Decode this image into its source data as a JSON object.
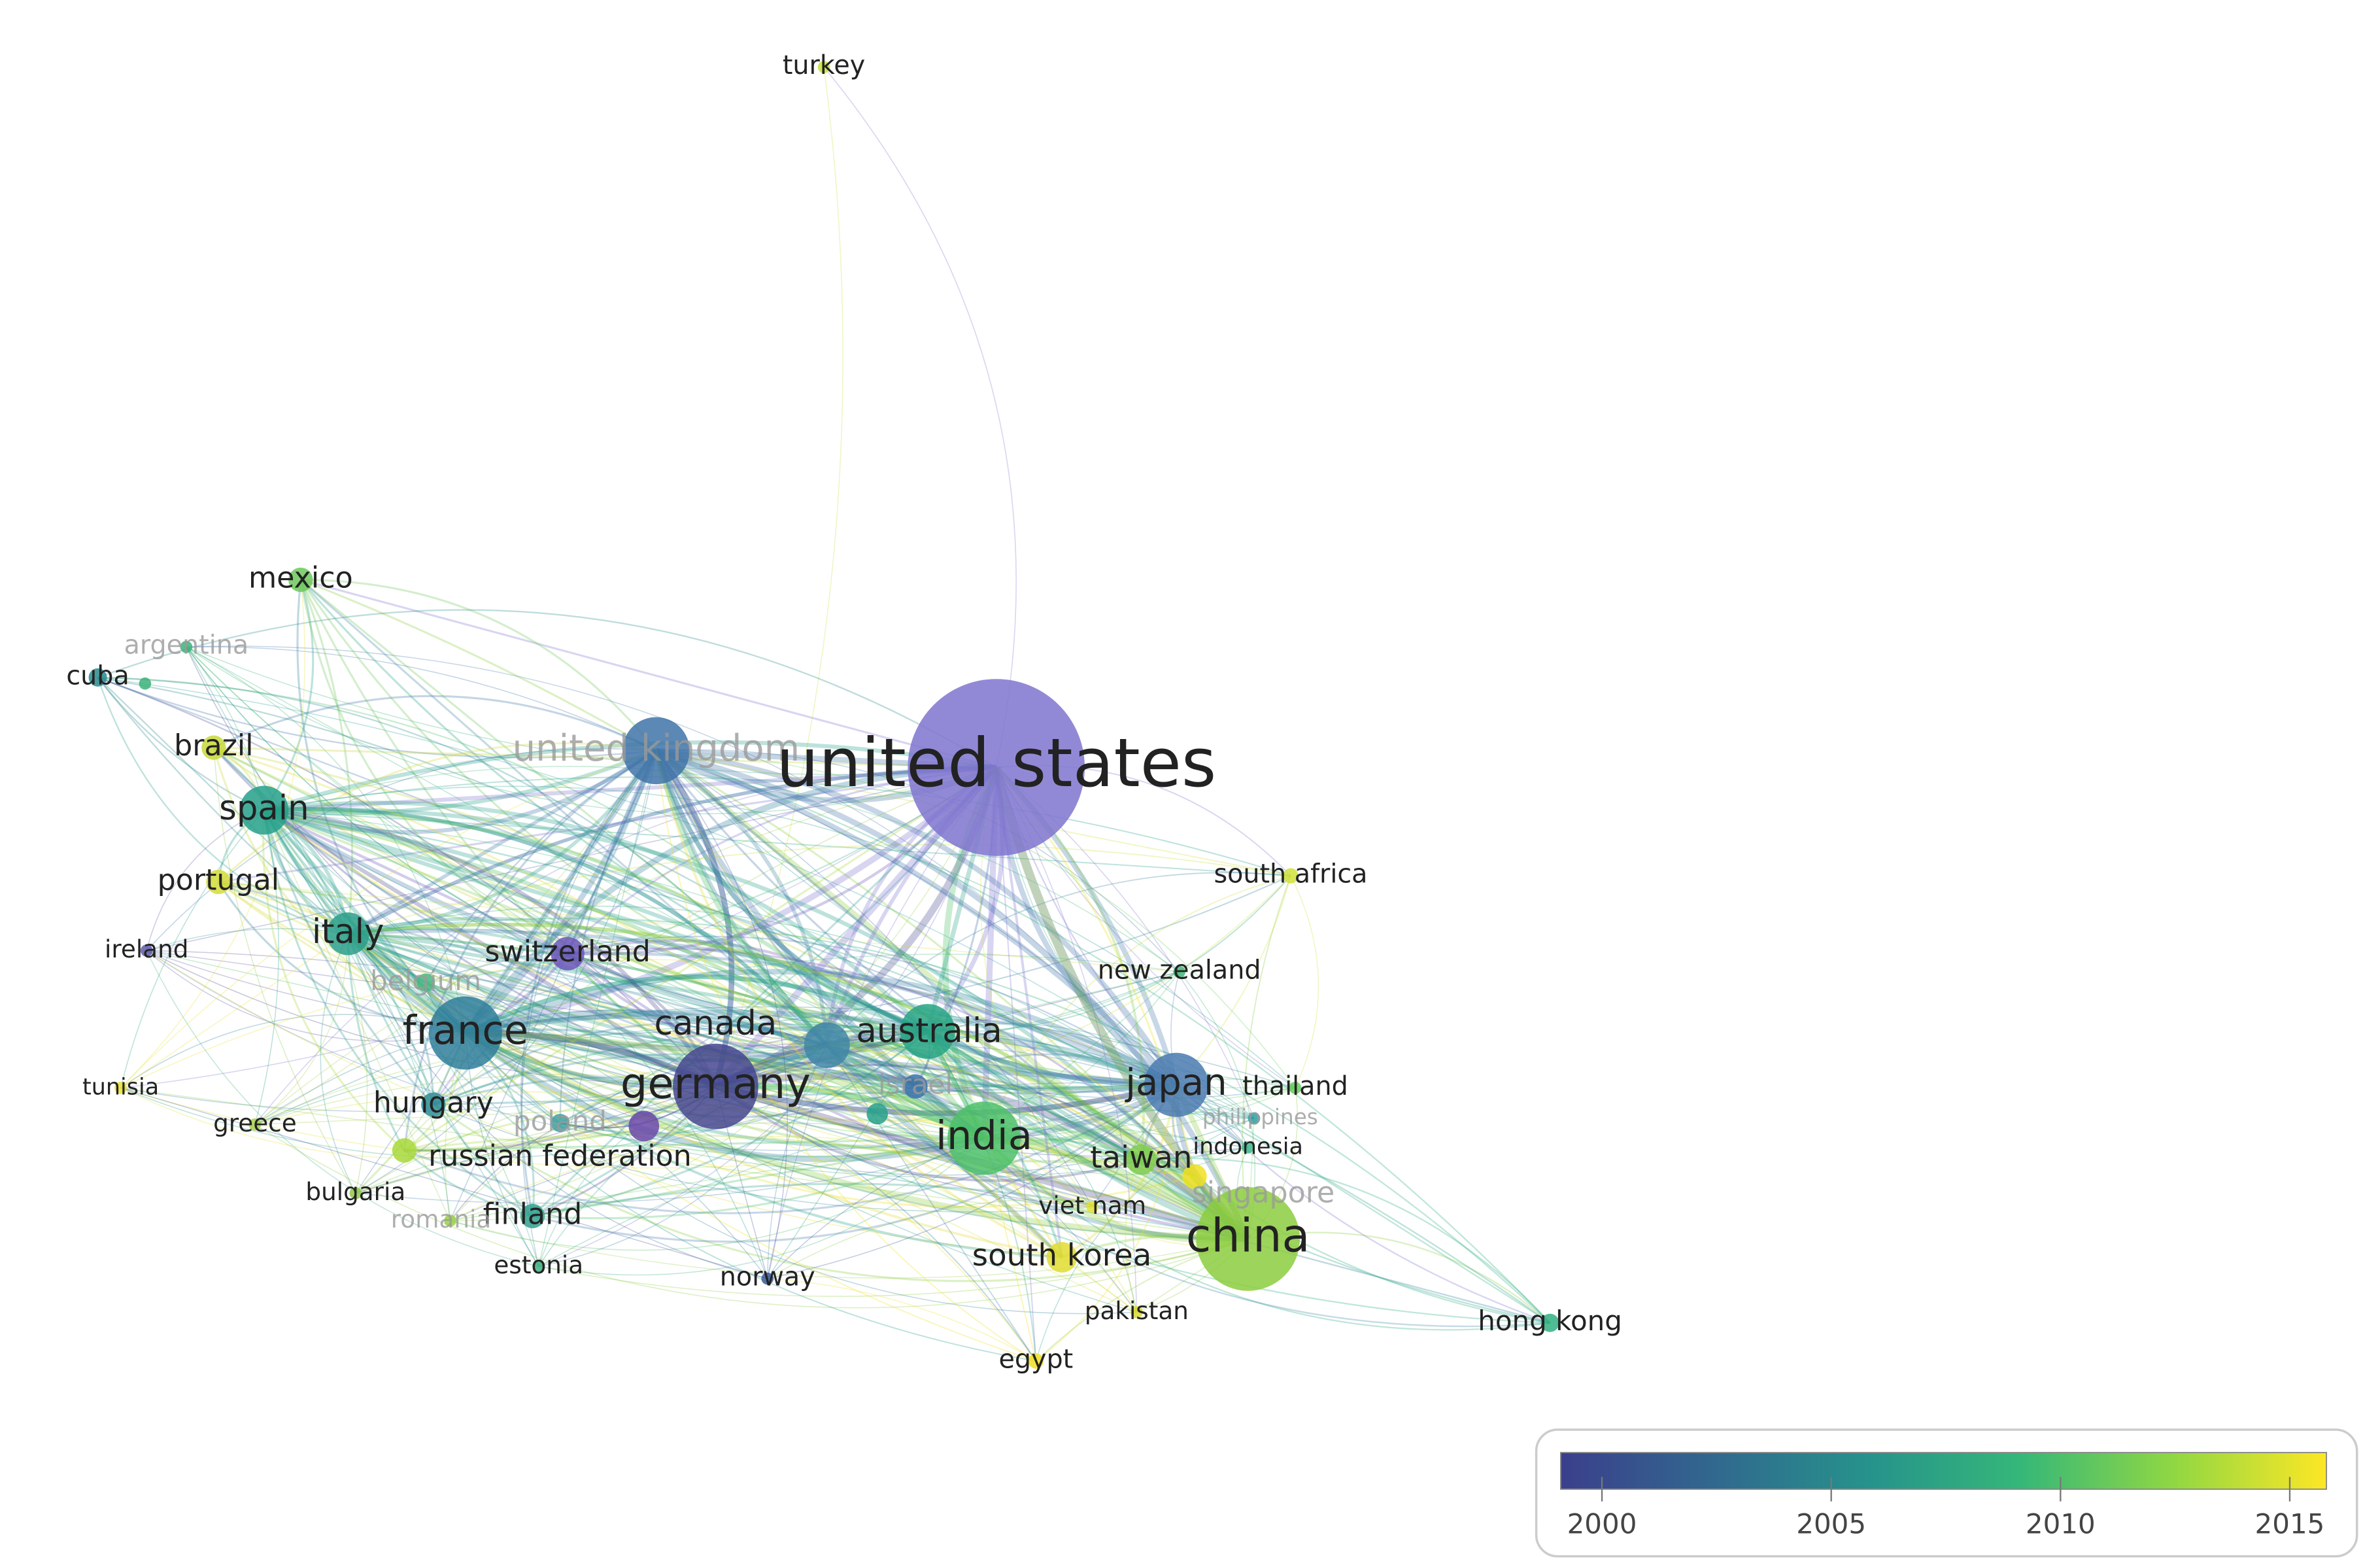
{
  "nodes": [
    {
      "label": "turkey",
      "color": "#c8e03a"
    },
    {
      "label": "mexico",
      "color": "#6cc85a"
    },
    {
      "label": "argentina",
      "color": "#3cb27a",
      "muted": true
    },
    {
      "label": "cuba",
      "color": "#2a8a8e"
    },
    {
      "label": "brazil",
      "color": "#c8d83a"
    },
    {
      "label": "united kingdom",
      "color": "#3f73a8",
      "muted": true
    },
    {
      "label": "united states",
      "color": "#7f74cf"
    },
    {
      "label": "spain",
      "color": "#25a08a"
    },
    {
      "label": "portugal",
      "color": "#d4dc3a"
    },
    {
      "label": "south africa",
      "color": "#d0e03a"
    },
    {
      "label": "italy",
      "color": "#2a9f8a"
    },
    {
      "label": "ireland",
      "color": "#5e5ba8"
    },
    {
      "label": "switzerland",
      "color": "#6a56b8"
    },
    {
      "label": "new zealand",
      "color": "#46b87a"
    },
    {
      "label": "belgium",
      "color": "#48b880",
      "muted": true
    },
    {
      "label": "france",
      "color": "#2f7e9a"
    },
    {
      "label": "canada",
      "color": "#3f86a6"
    },
    {
      "label": "australia",
      "color": "#27a384"
    },
    {
      "label": "tunisia",
      "color": "#e8e030"
    },
    {
      "label": "hungary",
      "color": "#2f8c96"
    },
    {
      "label": "germany",
      "color": "#45478e"
    },
    {
      "label": "israel",
      "color": "#3a72a8",
      "muted": true
    },
    {
      "label": "japan",
      "color": "#4a7ab0"
    },
    {
      "label": "thailand",
      "color": "#66cc5a"
    },
    {
      "label": "philippines",
      "color": "#2aa0a0",
      "muted": true
    },
    {
      "label": "greece",
      "color": "#a8d04a"
    },
    {
      "label": "india",
      "color": "#4cc068"
    },
    {
      "label": "poland",
      "color": "#40a0a0",
      "muted": true
    },
    {
      "label": "indonesia",
      "color": "#3cb88a"
    },
    {
      "label": "russian federation",
      "color": "#a8d83a"
    },
    {
      "label": "taiwan",
      "color": "#80cc50"
    },
    {
      "label": "bulgaria",
      "color": "#90c848"
    },
    {
      "label": "singapore",
      "color": "#f0e020",
      "muted": true
    },
    {
      "label": "viet nam",
      "color": "#e0e030"
    },
    {
      "label": "finland",
      "color": "#2fa08e"
    },
    {
      "label": "romania",
      "color": "#9ad048",
      "muted": true
    },
    {
      "label": "china",
      "color": "#8ccc40"
    },
    {
      "label": "south korea",
      "color": "#e0dc30"
    },
    {
      "label": "estonia",
      "color": "#40b080"
    },
    {
      "label": "norway",
      "color": "#3a5a9a"
    },
    {
      "label": "pakistan",
      "color": "#d8dc30"
    },
    {
      "label": "hong kong",
      "color": "#30b080"
    },
    {
      "label": "egypt",
      "color": "#f0e020"
    }
  ],
  "legend": {
    "range": [
      1999.1,
      2015.8
    ],
    "ticks": [
      2000,
      2005,
      2010,
      2015
    ],
    "colors": [
      "#3b3f8c",
      "#31688e",
      "#26928c",
      "#35b779",
      "#90d743",
      "#fde725"
    ]
  }
}
